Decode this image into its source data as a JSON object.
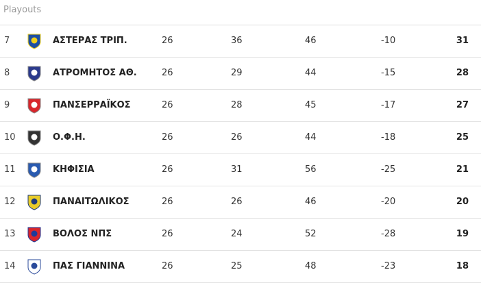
{
  "section_title": "Playouts",
  "rows": [
    {
      "rank": "7",
      "team": "ΑΣΤΕΡΑΣ ΤΡΙΠ.",
      "played": "26",
      "gf": "36",
      "ga": "46",
      "gd": "-10",
      "pts": "31",
      "logo": "asteras-crest-icon",
      "c1": "#1d4fa3",
      "c2": "#f2d21b"
    },
    {
      "rank": "8",
      "team": "ΑΤΡΟΜΗΤΟΣ ΑΘ.",
      "played": "26",
      "gf": "29",
      "ga": "44",
      "gd": "-15",
      "pts": "28",
      "logo": "atromitos-crest-icon",
      "c1": "#2b3a8c",
      "c2": "#ffffff"
    },
    {
      "rank": "9",
      "team": "ΠΑΝΣΕΡΡΑΪΚΟΣ",
      "played": "26",
      "gf": "28",
      "ga": "45",
      "gd": "-17",
      "pts": "27",
      "logo": "panserraikos-crest-icon",
      "c1": "#d8262c",
      "c2": "#ffffff"
    },
    {
      "rank": "10",
      "team": "Ο.Φ.Η.",
      "played": "26",
      "gf": "26",
      "ga": "44",
      "gd": "-18",
      "pts": "25",
      "logo": "ofi-crest-icon",
      "c1": "#333333",
      "c2": "#ffffff"
    },
    {
      "rank": "11",
      "team": "ΚΗΦΙΣΙΑ",
      "played": "26",
      "gf": "31",
      "ga": "56",
      "gd": "-25",
      "pts": "21",
      "logo": "kifisia-crest-icon",
      "c1": "#2a5bb0",
      "c2": "#ffffff"
    },
    {
      "rank": "12",
      "team": "ΠΑΝΑΙΤΩΛΙΚΟΣ",
      "played": "26",
      "gf": "26",
      "ga": "46",
      "gd": "-20",
      "pts": "20",
      "logo": "panaitolikos-crest-icon",
      "c1": "#e8cc2a",
      "c2": "#1d3a7a"
    },
    {
      "rank": "13",
      "team": "ΒΟΛΟΣ ΝΠΣ",
      "played": "26",
      "gf": "24",
      "ga": "52",
      "gd": "-28",
      "pts": "19",
      "logo": "volos-crest-icon",
      "c1": "#d8262c",
      "c2": "#1d3a9a"
    },
    {
      "rank": "14",
      "team": "ΠΑΣ ΓΙΑΝΝΙΝΑ",
      "played": "26",
      "gf": "25",
      "ga": "48",
      "gd": "-23",
      "pts": "18",
      "logo": "pas-giannina-crest-icon",
      "c1": "#ffffff",
      "c2": "#2a4a9a"
    }
  ]
}
